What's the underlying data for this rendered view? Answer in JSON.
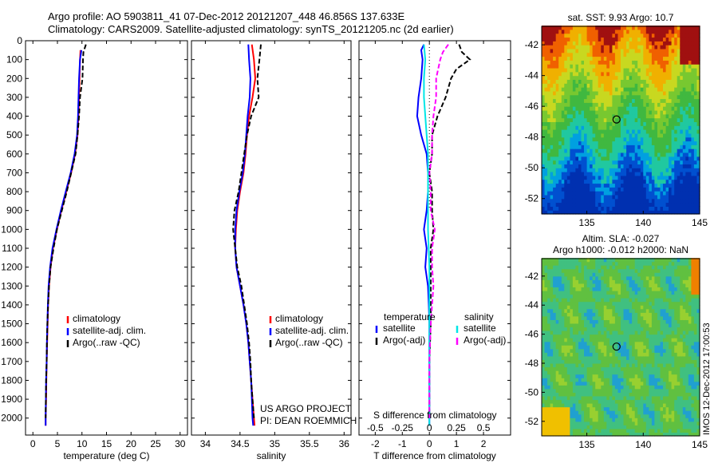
{
  "header": {
    "line1": "Argo profile: AO 5903811_41 07-Dec-2012 20121207_448 46.856S 137.633E",
    "line2": "Climatology: CARS2009. Satellite-adjusted climatology: synTS_20121205.nc (2d earlier)"
  },
  "stamp": "IMOS 12-Dec-2012 17:00:53",
  "colors": {
    "climatology": "#ff0000",
    "satellite": "#0000ff",
    "argo": "#000000",
    "sal_satellite": "#00e6e6",
    "sal_argo": "#ff00ff"
  },
  "chart_data": [
    {
      "id": "temperature",
      "type": "line",
      "xlabel": "temperature (deg C)",
      "ylabel": "",
      "xlim": [
        -1.5,
        31.5
      ],
      "ylim": [
        2090,
        0
      ],
      "xticks": [
        0,
        5,
        10,
        15,
        20,
        25,
        30
      ],
      "yticks": [
        0,
        100,
        200,
        300,
        400,
        500,
        600,
        700,
        800,
        900,
        1000,
        1100,
        1200,
        1300,
        1400,
        1500,
        1600,
        1700,
        1800,
        1900,
        2000
      ],
      "legend": {
        "placement": "center-right",
        "entries": [
          "climatology",
          "satellite-adj. clim.",
          "Argo(..raw -QC)"
        ]
      },
      "series": [
        {
          "name": "climatology",
          "color": "#ff0000",
          "dash": "",
          "points": [
            [
              9.7,
              50
            ],
            [
              9.6,
              100
            ],
            [
              9.5,
              200
            ],
            [
              9.4,
              300
            ],
            [
              9.3,
              400
            ],
            [
              9.1,
              500
            ],
            [
              8.6,
              600
            ],
            [
              7.8,
              700
            ],
            [
              6.8,
              800
            ],
            [
              5.8,
              900
            ],
            [
              4.9,
              1000
            ],
            [
              4.1,
              1100
            ],
            [
              3.6,
              1200
            ],
            [
              3.3,
              1300
            ],
            [
              3.1,
              1400
            ],
            [
              3.0,
              1500
            ],
            [
              2.9,
              1600
            ],
            [
              2.8,
              1700
            ],
            [
              2.75,
              1800
            ],
            [
              2.7,
              1900
            ],
            [
              2.6,
              2000
            ],
            [
              2.6,
              2040
            ]
          ]
        },
        {
          "name": "satellite-adj. clim.",
          "color": "#0000ff",
          "dash": "",
          "points": [
            [
              9.9,
              50
            ],
            [
              9.6,
              100
            ],
            [
              9.4,
              200
            ],
            [
              9.3,
              300
            ],
            [
              9.2,
              400
            ],
            [
              9.0,
              500
            ],
            [
              8.5,
              600
            ],
            [
              7.7,
              700
            ],
            [
              6.7,
              800
            ],
            [
              5.7,
              900
            ],
            [
              4.8,
              1000
            ],
            [
              4.0,
              1100
            ],
            [
              3.5,
              1200
            ],
            [
              3.2,
              1300
            ],
            [
              3.05,
              1400
            ],
            [
              2.95,
              1500
            ],
            [
              2.85,
              1600
            ],
            [
              2.8,
              1700
            ],
            [
              2.7,
              1800
            ],
            [
              2.65,
              1900
            ],
            [
              2.6,
              2000
            ],
            [
              2.6,
              2040
            ]
          ]
        },
        {
          "name": "Argo(..raw -QC)",
          "color": "#000000",
          "dash": "6,3",
          "points": [
            [
              10.8,
              20
            ],
            [
              10.3,
              60
            ],
            [
              10.2,
              100
            ],
            [
              10.1,
              200
            ],
            [
              9.6,
              300
            ],
            [
              9.4,
              400
            ],
            [
              9.1,
              500
            ],
            [
              8.7,
              600
            ],
            [
              7.8,
              700
            ],
            [
              6.9,
              800
            ],
            [
              5.9,
              900
            ],
            [
              4.9,
              1000
            ],
            [
              4.2,
              1100
            ],
            [
              3.6,
              1200
            ],
            [
              3.3,
              1300
            ],
            [
              3.1,
              1400
            ],
            [
              2.95,
              1500
            ],
            [
              2.85,
              1600
            ],
            [
              2.8,
              1700
            ],
            [
              2.7,
              1800
            ],
            [
              2.65,
              1900
            ],
            [
              2.6,
              2000
            ]
          ]
        }
      ]
    },
    {
      "id": "salinity",
      "type": "line",
      "xlabel": "salinity",
      "ylabel": "",
      "xlim": [
        33.8,
        36.1
      ],
      "ylim": [
        2090,
        0
      ],
      "xticks": [
        34,
        34.5,
        35,
        35.5,
        36
      ],
      "legend": {
        "placement": "center-right",
        "entries": [
          "climatology",
          "satellite-adj. clim.",
          "Argo(..raw -QC)"
        ]
      },
      "annotation": [
        "US ARGO PROJECT",
        "PI: DEAN ROEMMICH"
      ],
      "series": [
        {
          "name": "climatology",
          "color": "#ff0000",
          "dash": "",
          "points": [
            [
              34.67,
              20
            ],
            [
              34.7,
              100
            ],
            [
              34.72,
              200
            ],
            [
              34.68,
              300
            ],
            [
              34.63,
              400
            ],
            [
              34.6,
              500
            ],
            [
              34.58,
              600
            ],
            [
              34.55,
              700
            ],
            [
              34.5,
              800
            ],
            [
              34.46,
              900
            ],
            [
              34.44,
              1000
            ],
            [
              34.43,
              1100
            ],
            [
              34.45,
              1200
            ],
            [
              34.5,
              1300
            ],
            [
              34.55,
              1400
            ],
            [
              34.59,
              1500
            ],
            [
              34.62,
              1600
            ],
            [
              34.64,
              1700
            ],
            [
              34.66,
              1800
            ],
            [
              34.68,
              1900
            ],
            [
              34.7,
              2000
            ],
            [
              34.71,
              2040
            ]
          ]
        },
        {
          "name": "satellite-adj. clim.",
          "color": "#0000ff",
          "dash": "",
          "points": [
            [
              34.62,
              20
            ],
            [
              34.63,
              100
            ],
            [
              34.65,
              200
            ],
            [
              34.64,
              300
            ],
            [
              34.61,
              400
            ],
            [
              34.59,
              500
            ],
            [
              34.57,
              600
            ],
            [
              34.54,
              700
            ],
            [
              34.49,
              800
            ],
            [
              34.45,
              900
            ],
            [
              34.43,
              1000
            ],
            [
              34.43,
              1100
            ],
            [
              34.45,
              1200
            ],
            [
              34.5,
              1300
            ],
            [
              34.55,
              1400
            ],
            [
              34.59,
              1500
            ],
            [
              34.62,
              1600
            ],
            [
              34.64,
              1700
            ],
            [
              34.66,
              1800
            ],
            [
              34.67,
              1900
            ],
            [
              34.68,
              2000
            ],
            [
              34.69,
              2040
            ]
          ]
        },
        {
          "name": "Argo(..raw -QC)",
          "color": "#000000",
          "dash": "6,3",
          "points": [
            [
              34.8,
              20
            ],
            [
              34.78,
              100
            ],
            [
              34.75,
              200
            ],
            [
              34.77,
              300
            ],
            [
              34.66,
              400
            ],
            [
              34.6,
              500
            ],
            [
              34.56,
              600
            ],
            [
              34.52,
              700
            ],
            [
              34.48,
              800
            ],
            [
              34.42,
              900
            ],
            [
              34.4,
              1000
            ],
            [
              34.43,
              1100
            ],
            [
              34.46,
              1200
            ],
            [
              34.52,
              1300
            ],
            [
              34.56,
              1400
            ],
            [
              34.6,
              1500
            ],
            [
              34.63,
              1600
            ],
            [
              34.65,
              1700
            ],
            [
              34.66,
              1800
            ],
            [
              34.68,
              1900
            ],
            [
              34.7,
              2000
            ]
          ]
        }
      ]
    },
    {
      "id": "difference",
      "type": "line",
      "xlabel": "T difference from climatology",
      "top_label": "S difference from climatology",
      "ylabel": "",
      "xlim": [
        -2.6,
        3.0
      ],
      "ylim": [
        2090,
        0
      ],
      "xticks": [
        -2,
        -1,
        0,
        1,
        2
      ],
      "top_ticks": [
        "-0.5",
        "-0.25",
        "0",
        "0.25",
        "0.5"
      ],
      "top_tick_positions": [
        -2,
        -1,
        0,
        1,
        2
      ],
      "legend": {
        "placement": "center",
        "groups": [
          {
            "title": "temperature",
            "entries": [
              "satellite",
              "Argo(-adj)"
            ]
          },
          {
            "title": "salinity",
            "entries": [
              "satellite",
              "Argo(-adj)"
            ]
          }
        ]
      },
      "series": [
        {
          "name": "temperature satellite",
          "color": "#0000ff",
          "dash": "",
          "points": [
            [
              -0.2,
              20
            ],
            [
              -0.3,
              50
            ],
            [
              -0.25,
              100
            ],
            [
              -0.3,
              200
            ],
            [
              -0.4,
              300
            ],
            [
              -0.45,
              400
            ],
            [
              -0.3,
              500
            ],
            [
              -0.1,
              600
            ],
            [
              -0.05,
              700
            ],
            [
              -0.05,
              800
            ],
            [
              -0.1,
              900
            ],
            [
              -0.2,
              1000
            ],
            [
              -0.1,
              1100
            ],
            [
              -0.15,
              1200
            ],
            [
              -0.05,
              1300
            ],
            [
              -0.02,
              1400
            ],
            [
              0.0,
              1500
            ],
            [
              0.0,
              1700
            ],
            [
              0.0,
              1900
            ],
            [
              0.0,
              2040
            ]
          ]
        },
        {
          "name": "temperature Argo(-adj)",
          "color": "#000000",
          "dash": "6,3",
          "points": [
            [
              1.1,
              20
            ],
            [
              1.2,
              60
            ],
            [
              1.5,
              100
            ],
            [
              1.0,
              150
            ],
            [
              0.8,
              200
            ],
            [
              0.6,
              300
            ],
            [
              0.3,
              400
            ],
            [
              0.1,
              500
            ],
            [
              0.1,
              600
            ],
            [
              0.0,
              700
            ],
            [
              0.1,
              800
            ],
            [
              0.1,
              900
            ],
            [
              0.15,
              1000
            ],
            [
              0.05,
              1100
            ],
            [
              0.05,
              1200
            ],
            [
              0.05,
              1300
            ],
            [
              0.05,
              1400
            ],
            [
              0.05,
              1500
            ],
            [
              0.0,
              1700
            ],
            [
              0.0,
              1900
            ],
            [
              0.0,
              2000
            ]
          ]
        },
        {
          "name": "salinity satellite",
          "color": "#00e6e6",
          "dash": "",
          "points": [
            [
              -0.2,
              20
            ],
            [
              -0.15,
              100
            ],
            [
              -0.2,
              200
            ],
            [
              -0.2,
              300
            ],
            [
              -0.15,
              400
            ],
            [
              -0.1,
              500
            ],
            [
              -0.05,
              600
            ],
            [
              -0.05,
              800
            ],
            [
              -0.05,
              1000
            ],
            [
              0.0,
              1200
            ],
            [
              0.0,
              1400
            ],
            [
              0.0,
              1600
            ],
            [
              0.0,
              1800
            ],
            [
              0.0,
              2040
            ]
          ]
        },
        {
          "name": "salinity Argo(-adj)",
          "color": "#ff00ff",
          "dash": "6,3",
          "points": [
            [
              0.7,
              20
            ],
            [
              0.5,
              60
            ],
            [
              0.4,
              100
            ],
            [
              0.25,
              200
            ],
            [
              0.25,
              300
            ],
            [
              0.15,
              400
            ],
            [
              0.1,
              500
            ],
            [
              0.1,
              600
            ],
            [
              0.0,
              700
            ],
            [
              0.05,
              800
            ],
            [
              0.05,
              900
            ],
            [
              0.2,
              1000
            ],
            [
              0.1,
              1100
            ],
            [
              0.1,
              1200
            ],
            [
              0.15,
              1300
            ],
            [
              0.1,
              1400
            ],
            [
              0.05,
              1500
            ],
            [
              0.0,
              1700
            ],
            [
              0.0,
              1900
            ],
            [
              0.0,
              2000
            ]
          ]
        }
      ]
    },
    {
      "id": "sst-map",
      "type": "heatmap",
      "title": "sat. SST: 9.93 Argo: 10.7",
      "xlim": [
        131,
        145
      ],
      "ylim": [
        -53,
        -40.8
      ],
      "xticks": [
        135,
        140,
        145
      ],
      "yticks": [
        -42,
        -44,
        -46,
        -48,
        -50,
        -52
      ],
      "marker": {
        "lon": 137.633,
        "lat": -46.856
      }
    },
    {
      "id": "sla-map",
      "type": "heatmap",
      "title": [
        "Altim. SLA: -0.027",
        "Argo h1000: -0.012 h2000: NaN"
      ],
      "xlim": [
        131,
        145
      ],
      "ylim": [
        -53,
        -40.8
      ],
      "xticks": [
        135,
        140,
        145
      ],
      "yticks": [
        -42,
        -44,
        -46,
        -48,
        -50,
        -52
      ],
      "marker": {
        "lon": 137.633,
        "lat": -46.856
      }
    }
  ]
}
